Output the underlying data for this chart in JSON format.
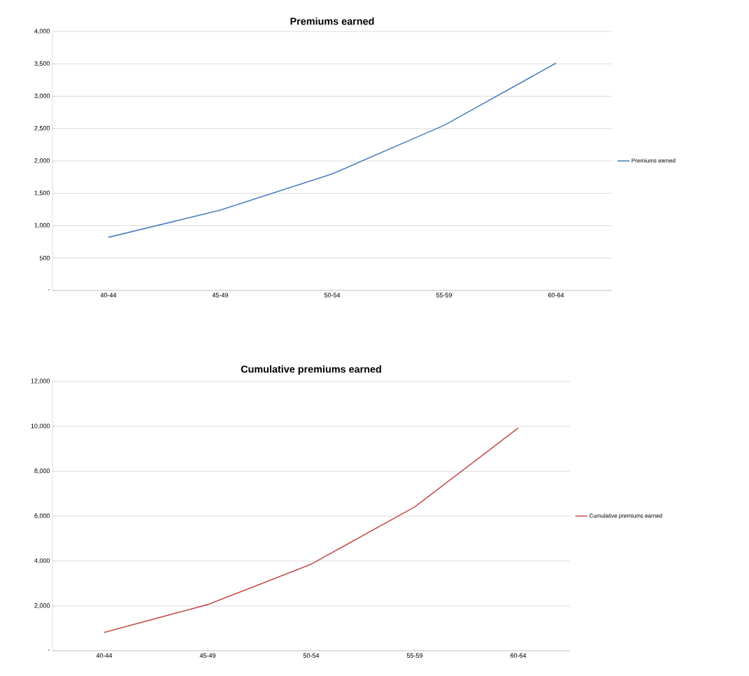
{
  "chart_data": [
    {
      "type": "line",
      "title": "Premiums earned",
      "categories": [
        "40-44",
        "45-49",
        "50-54",
        "55-59",
        "60-64"
      ],
      "series": [
        {
          "name": "Premiums earned",
          "color": "#4f81bd",
          "values": [
            820,
            1240,
            1800,
            2550,
            3510
          ]
        }
      ],
      "ylim": [
        0,
        4000
      ],
      "yticks": [
        {
          "value": 0,
          "label": "-"
        },
        500,
        {
          "value": 1000,
          "label": "1,000"
        },
        {
          "value": 1500,
          "label": "1,500"
        },
        {
          "value": 2000,
          "label": "2,000"
        },
        {
          "value": 2500,
          "label": "2,500"
        },
        {
          "value": 3000,
          "label": "3,000"
        },
        {
          "value": 3500,
          "label": "3,500"
        },
        {
          "value": 4000,
          "label": "4,000"
        }
      ],
      "grid": "y",
      "legend": "right"
    },
    {
      "type": "line",
      "title": "Cumulative premiums earned",
      "categories": [
        "40-44",
        "45-49",
        "50-54",
        "55-59",
        "60-64"
      ],
      "series": [
        {
          "name": "Cumulative premiums earned",
          "color": "#c0504d",
          "values": [
            820,
            2060,
            3860,
            6410,
            9920
          ]
        }
      ],
      "ylim": [
        0,
        12000
      ],
      "yticks": [
        {
          "value": 0,
          "label": "-"
        },
        {
          "value": 2000,
          "label": "2,000"
        },
        {
          "value": 4000,
          "label": "4,000"
        },
        {
          "value": 6000,
          "label": "6,000"
        },
        {
          "value": 8000,
          "label": "8,000"
        },
        {
          "value": 10000,
          "label": "10,000"
        },
        {
          "value": 12000,
          "label": "12,000"
        }
      ],
      "grid": "y",
      "legend": "right"
    }
  ]
}
